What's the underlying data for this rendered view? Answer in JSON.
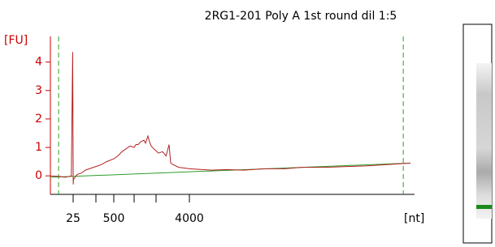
{
  "chart_data": {
    "type": "line",
    "title": "2RG1-201 Poly A 1st round dil 1:5",
    "ylabel": "[FU]",
    "xlabel": "[nt]",
    "x": [
      0,
      10,
      16,
      23,
      24.5,
      25.5,
      27,
      31,
      56,
      90,
      119,
      150,
      181,
      230,
      295,
      380,
      500,
      600,
      700,
      800,
      900,
      1000,
      1090,
      1185,
      1300,
      1444,
      1520,
      1630,
      1700,
      1778,
      1900,
      2146,
      2390,
      2600,
      2780,
      2878,
      3000,
      3365,
      4000,
      4585,
      5000,
      5450,
      6000,
      6530,
      7000,
      7610,
      8200,
      8700,
      9300,
      9890
    ],
    "series": [
      {
        "color": "#b22222",
        "values": [
          0.0,
          -0.02,
          -0.05,
          0.0,
          4.35,
          -0.3,
          -0.15,
          -0.1,
          0.05,
          0.1,
          0.2,
          0.25,
          0.3,
          0.35,
          0.4,
          0.5,
          0.6,
          0.7,
          0.85,
          0.95,
          1.05,
          1.0,
          1.1,
          1.1,
          1.2,
          1.25,
          1.15,
          1.4,
          1.2,
          1.05,
          0.95,
          0.8,
          0.85,
          0.7,
          1.1,
          0.45,
          0.4,
          0.3,
          0.25,
          0.2,
          0.22,
          0.2,
          0.25,
          0.25,
          0.3,
          0.3,
          0.33,
          0.35,
          0.4,
          0.45
        ]
      }
    ],
    "baseline": {
      "color": "#2a9d2a",
      "x": [
        0,
        9890
      ],
      "values": [
        -0.05,
        0.45
      ]
    },
    "markers": [
      9,
      9700
    ],
    "xlim": [
      0,
      10000
    ],
    "ylim": [
      -0.65,
      4.9
    ],
    "yticks": [
      0,
      1,
      2,
      3,
      4
    ],
    "xticks": [
      25,
      500,
      4000
    ],
    "minor_xticks": [
      200,
      1000,
      2000
    ],
    "axis_color": "#cc0000"
  }
}
